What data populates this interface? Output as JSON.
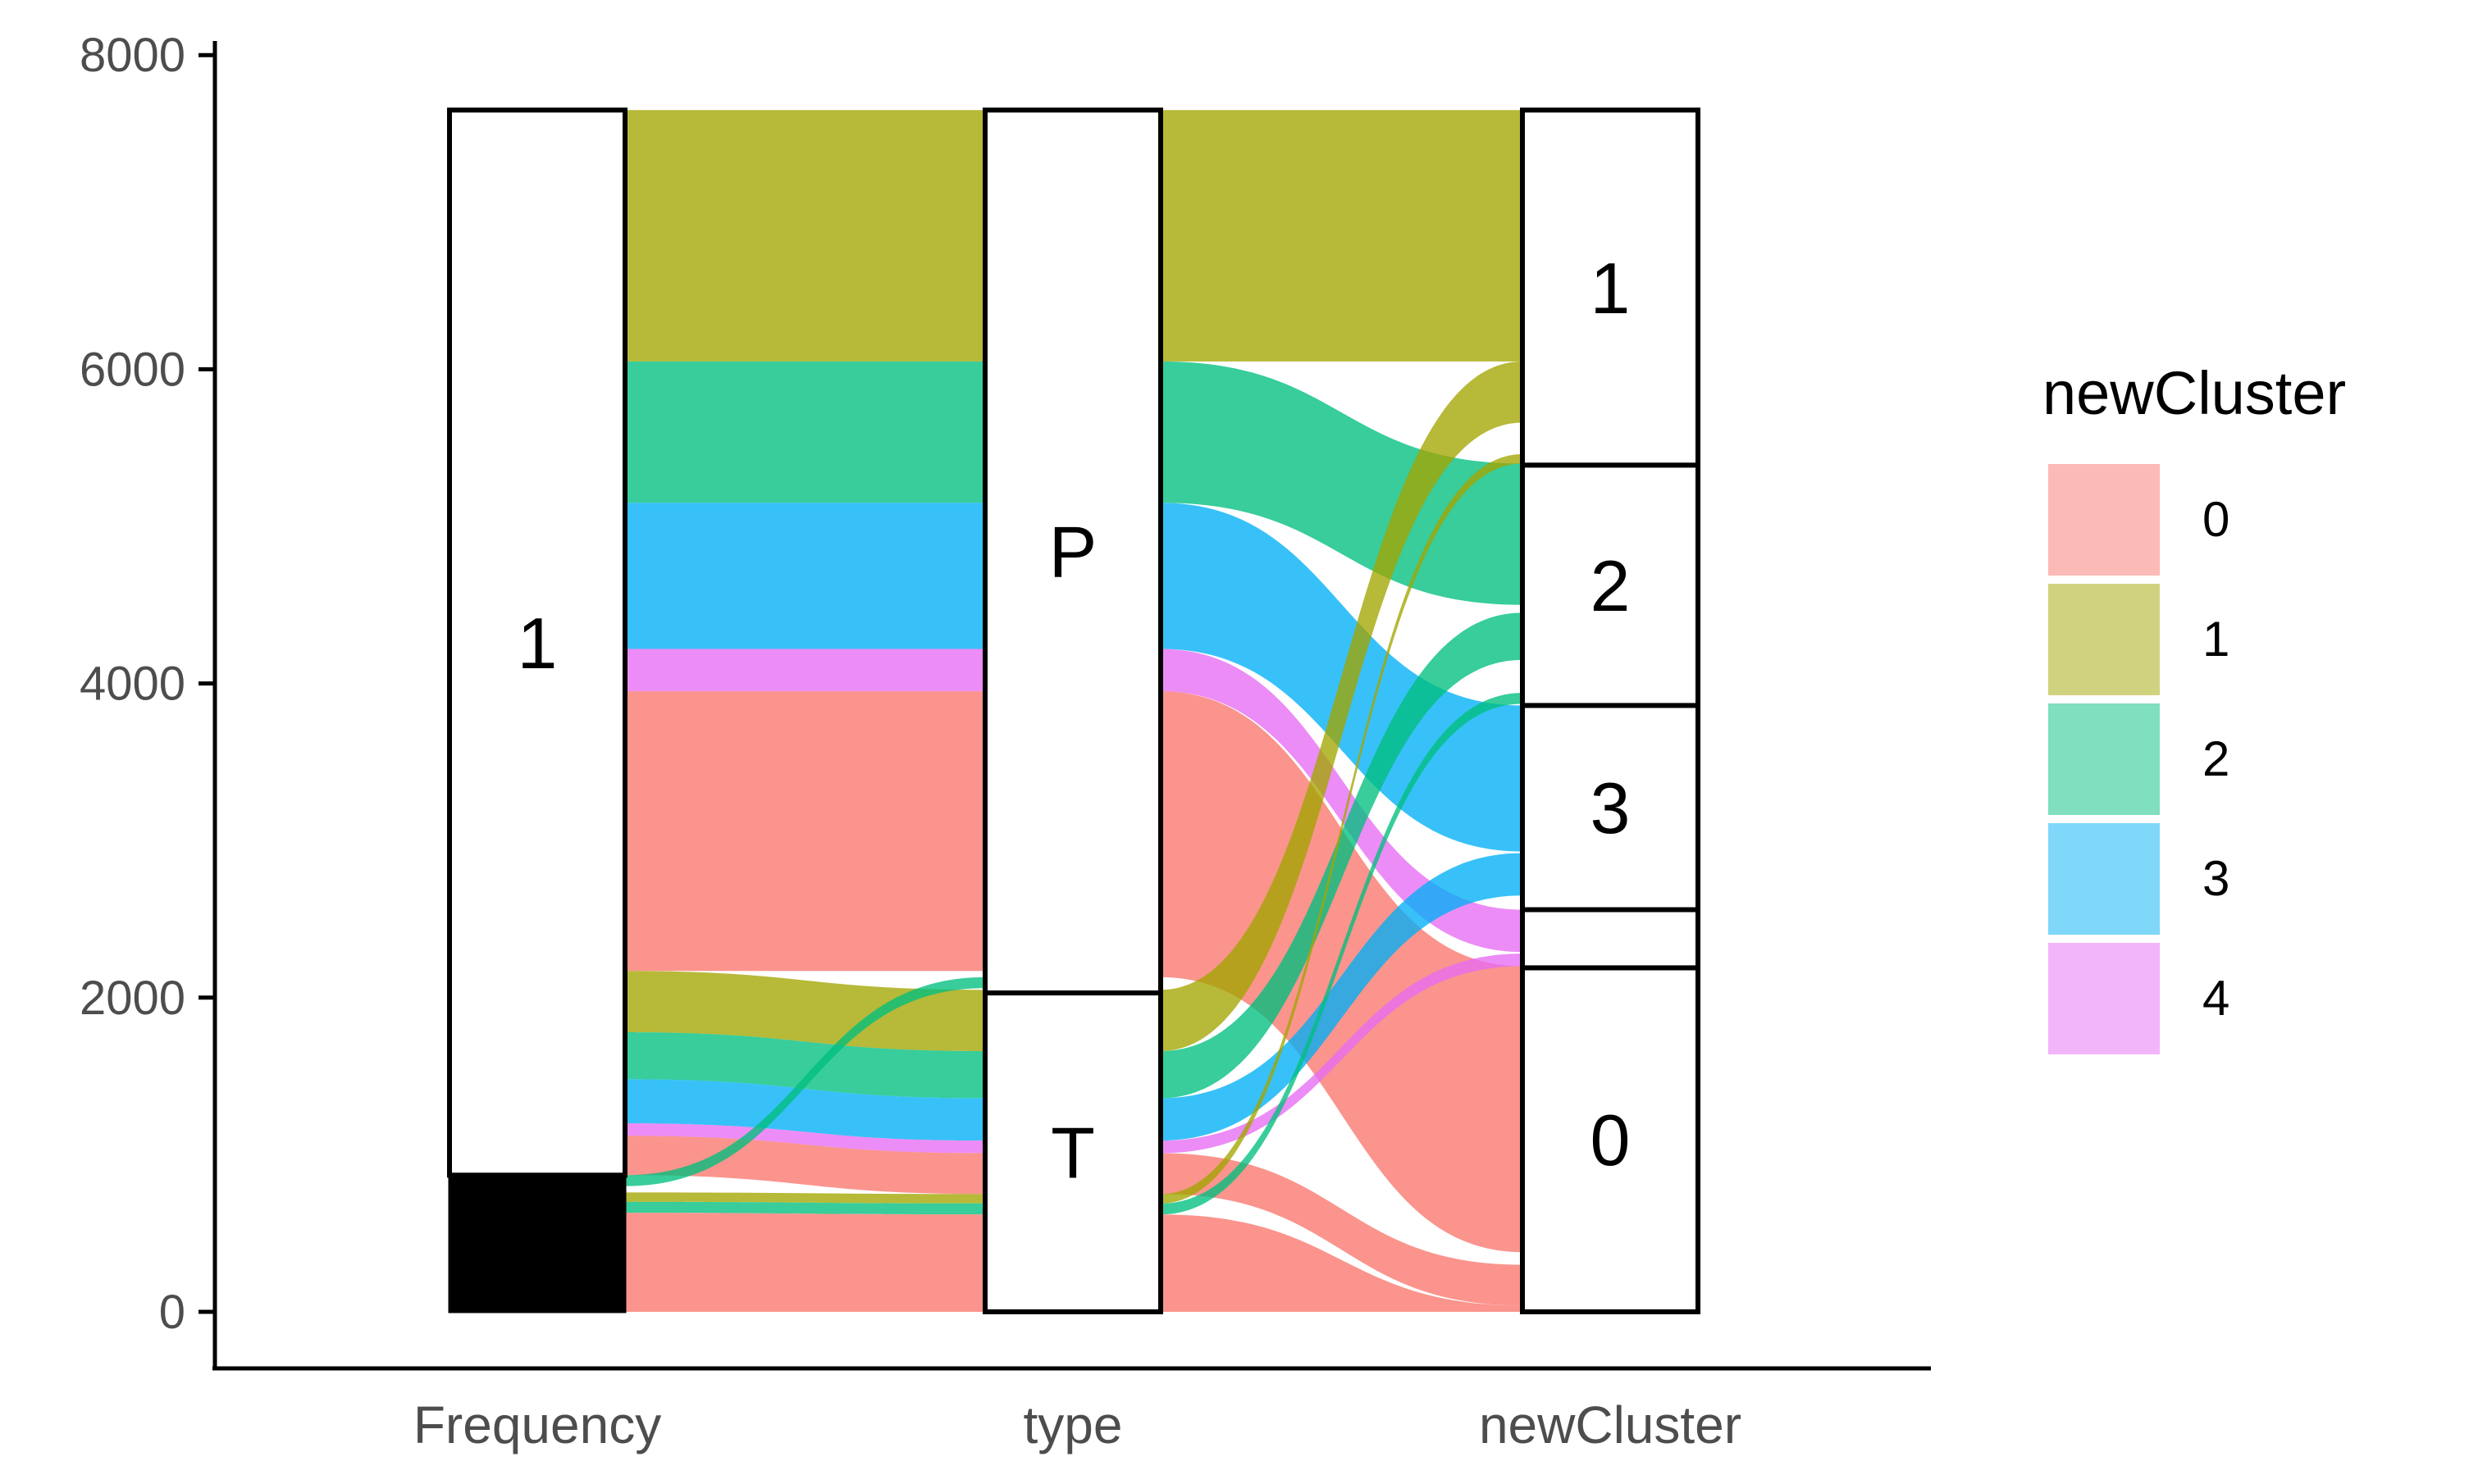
{
  "chart_data": {
    "type": "alluvial",
    "axes": [
      "Frequency",
      "type",
      "newCluster"
    ],
    "ylim": [
      0,
      8000
    ],
    "yticks": [
      0,
      2000,
      4000,
      6000,
      8000
    ],
    "grid": false,
    "legend": {
      "title": "newCluster",
      "placement": "right",
      "entries": [
        {
          "label": "0",
          "color": "#F8766D"
        },
        {
          "label": "1",
          "color": "#A3A500"
        },
        {
          "label": "2",
          "color": "#00BF7D"
        },
        {
          "label": "3",
          "color": "#00B0F6"
        },
        {
          "label": "4",
          "color": "#E76BF3"
        }
      ]
    },
    "strata": {
      "Frequency": [
        {
          "label": "",
          "from": 0,
          "to": 200
        },
        {
          "label": "",
          "from": 200,
          "to": 300
        },
        {
          "label": "",
          "from": 300,
          "to": 380
        },
        {
          "label": "",
          "from": 380,
          "to": 450
        },
        {
          "label": "",
          "from": 450,
          "to": 520
        },
        {
          "label": "",
          "from": 520,
          "to": 580
        },
        {
          "label": "",
          "from": 580,
          "to": 630
        },
        {
          "label": "",
          "from": 630,
          "to": 870
        },
        {
          "label": "1",
          "from": 870,
          "to": 7650
        }
      ],
      "type": [
        {
          "label": "T",
          "from": 0,
          "to": 2030
        },
        {
          "label": "P",
          "from": 2030,
          "to": 7650
        }
      ],
      "newCluster": [
        {
          "label": "0",
          "from": 0,
          "to": 2190
        },
        {
          "label": "",
          "from": 2190,
          "to": 2560
        },
        {
          "label": "3",
          "from": 2560,
          "to": 3860
        },
        {
          "label": "2",
          "from": 3860,
          "to": 5390
        },
        {
          "label": "1",
          "from": 5390,
          "to": 7650
        }
      ]
    },
    "flows_left": [
      {
        "cluster": "1",
        "f": [
          6050,
          7650
        ],
        "t": [
          6050,
          7650
        ]
      },
      {
        "cluster": "2",
        "f": [
          5150,
          6050
        ],
        "t": [
          5150,
          6050
        ]
      },
      {
        "cluster": "3",
        "f": [
          4220,
          5150
        ],
        "t": [
          4220,
          5150
        ]
      },
      {
        "cluster": "4",
        "f": [
          3950,
          4220
        ],
        "t": [
          3950,
          4220
        ]
      },
      {
        "cluster": "0",
        "f": [
          2170,
          3950
        ],
        "t": [
          2170,
          3950
        ]
      },
      {
        "cluster": "1",
        "f": [
          1780,
          2170
        ],
        "t": [
          1660,
          2050
        ]
      },
      {
        "cluster": "2",
        "f": [
          1480,
          1780
        ],
        "t": [
          1360,
          1660
        ]
      },
      {
        "cluster": "3",
        "f": [
          1200,
          1480
        ],
        "t": [
          1090,
          1360
        ]
      },
      {
        "cluster": "4",
        "f": [
          1120,
          1200
        ],
        "t": [
          1010,
          1090
        ]
      },
      {
        "cluster": "0",
        "f": [
          870,
          1120
        ],
        "t": [
          750,
          1010
        ]
      },
      {
        "cluster": "2",
        "f": [
          800,
          870
        ],
        "t": [
          2060,
          2130
        ]
      },
      {
        "cluster": "1",
        "f": [
          700,
          760
        ],
        "t": [
          690,
          750
        ]
      },
      {
        "cluster": "2",
        "f": [
          630,
          700
        ],
        "t": [
          620,
          690
        ]
      },
      {
        "cluster": "0",
        "f": [
          0,
          630
        ],
        "t": [
          0,
          620
        ]
      }
    ],
    "flows_right": [
      {
        "cluster": "1",
        "f": [
          6050,
          7650
        ],
        "t": [
          6050,
          7650
        ]
      },
      {
        "cluster": "2",
        "f": [
          5150,
          6050
        ],
        "t": [
          4500,
          5400
        ]
      },
      {
        "cluster": "3",
        "f": [
          4220,
          5150
        ],
        "t": [
          2930,
          3860
        ]
      },
      {
        "cluster": "4",
        "f": [
          3950,
          4220
        ],
        "t": [
          2290,
          2560
        ]
      },
      {
        "cluster": "0",
        "f": [
          2130,
          3950
        ],
        "t": [
          380,
          2200
        ]
      },
      {
        "cluster": "1",
        "f": [
          1660,
          2050
        ],
        "t": [
          5660,
          6050
        ]
      },
      {
        "cluster": "2",
        "f": [
          1360,
          1660
        ],
        "t": [
          4150,
          4450
        ]
      },
      {
        "cluster": "3",
        "f": [
          1090,
          1360
        ],
        "t": [
          2650,
          2920
        ]
      },
      {
        "cluster": "4",
        "f": [
          1010,
          1090
        ],
        "t": [
          2200,
          2280
        ]
      },
      {
        "cluster": "0",
        "f": [
          750,
          1010
        ],
        "t": [
          40,
          300
        ]
      },
      {
        "cluster": "1",
        "f": [
          690,
          750
        ],
        "t": [
          5400,
          5460
        ]
      },
      {
        "cluster": "2",
        "f": [
          620,
          690
        ],
        "t": [
          3870,
          3940
        ]
      },
      {
        "cluster": "0",
        "f": [
          0,
          620
        ],
        "t": [
          0,
          40
        ]
      }
    ]
  }
}
